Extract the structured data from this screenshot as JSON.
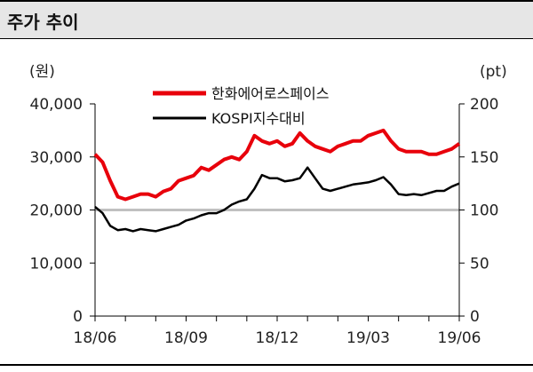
{
  "header": {
    "title": "주가 추이"
  },
  "chart_data": {
    "type": "line",
    "title": "주가 추이",
    "left_axis": {
      "unit": "(원)",
      "ylim": [
        0,
        40000
      ],
      "ticks": [
        0,
        10000,
        20000,
        30000,
        40000
      ],
      "tick_labels": [
        "0",
        "10,000",
        "20,000",
        "30,000",
        "40,000"
      ]
    },
    "right_axis": {
      "unit": "(pt)",
      "ylim": [
        0,
        200
      ],
      "ticks": [
        0,
        50,
        100,
        150,
        200
      ],
      "tick_labels": [
        "0",
        "50",
        "100",
        "150",
        "200"
      ]
    },
    "x_tick_labels": [
      "18/06",
      "18/09",
      "18/12",
      "19/03",
      "19/06"
    ],
    "reference_line": {
      "axis": "right",
      "value": 100,
      "color": "#c0c0c0"
    },
    "legend": {
      "placement": "top-center",
      "entries": [
        "한화에어로스페이스",
        "KOSPI지수대비"
      ]
    },
    "series": [
      {
        "name": "한화에어로스페이스",
        "axis": "left",
        "color": "#e8000b",
        "x": [
          0,
          0.25,
          0.5,
          0.75,
          1,
          1.25,
          1.5,
          1.75,
          2,
          2.25,
          2.5,
          2.75,
          3,
          3.25,
          3.5,
          3.75,
          4,
          4.25,
          4.5,
          4.75,
          5,
          5.25,
          5.5,
          5.75,
          6,
          6.25,
          6.5,
          6.75,
          7,
          7.25,
          7.5,
          7.75,
          8,
          8.25,
          8.5,
          8.75,
          9,
          9.25,
          9.5,
          9.75,
          10,
          10.25,
          10.5,
          10.75,
          11,
          11.25,
          11.5,
          11.75,
          12
        ],
        "values": [
          30500,
          29000,
          25500,
          22500,
          22000,
          22500,
          23000,
          23000,
          22500,
          23500,
          24000,
          25500,
          26000,
          26500,
          28000,
          27500,
          28500,
          29500,
          30000,
          29500,
          31000,
          34000,
          33000,
          32500,
          33000,
          32000,
          32500,
          34500,
          33000,
          32000,
          31500,
          31000,
          32000,
          32500,
          33000,
          33000,
          34000,
          34500,
          35000,
          33000,
          31500,
          31000,
          31000,
          31000,
          30500,
          30500,
          31000,
          31500,
          32500
        ]
      },
      {
        "name": "KOSPI지수대비",
        "axis": "right",
        "color": "#000000",
        "x": [
          0,
          0.25,
          0.5,
          0.75,
          1,
          1.25,
          1.5,
          1.75,
          2,
          2.25,
          2.5,
          2.75,
          3,
          3.25,
          3.5,
          3.75,
          4,
          4.25,
          4.5,
          4.75,
          5,
          5.25,
          5.5,
          5.75,
          6,
          6.25,
          6.5,
          6.75,
          7,
          7.25,
          7.5,
          7.75,
          8,
          8.25,
          8.5,
          8.75,
          9,
          9.25,
          9.5,
          9.75,
          10,
          10.25,
          10.5,
          10.75,
          11,
          11.25,
          11.5,
          11.75,
          12
        ],
        "values": [
          103,
          97,
          85,
          81,
          82,
          80,
          82,
          81,
          80,
          82,
          84,
          86,
          90,
          92,
          95,
          97,
          97,
          100,
          105,
          108,
          110,
          120,
          133,
          130,
          130,
          127,
          128,
          130,
          140,
          130,
          120,
          118,
          120,
          122,
          124,
          125,
          126,
          128,
          131,
          124,
          115,
          114,
          115,
          114,
          116,
          118,
          118,
          122,
          125
        ]
      }
    ]
  }
}
